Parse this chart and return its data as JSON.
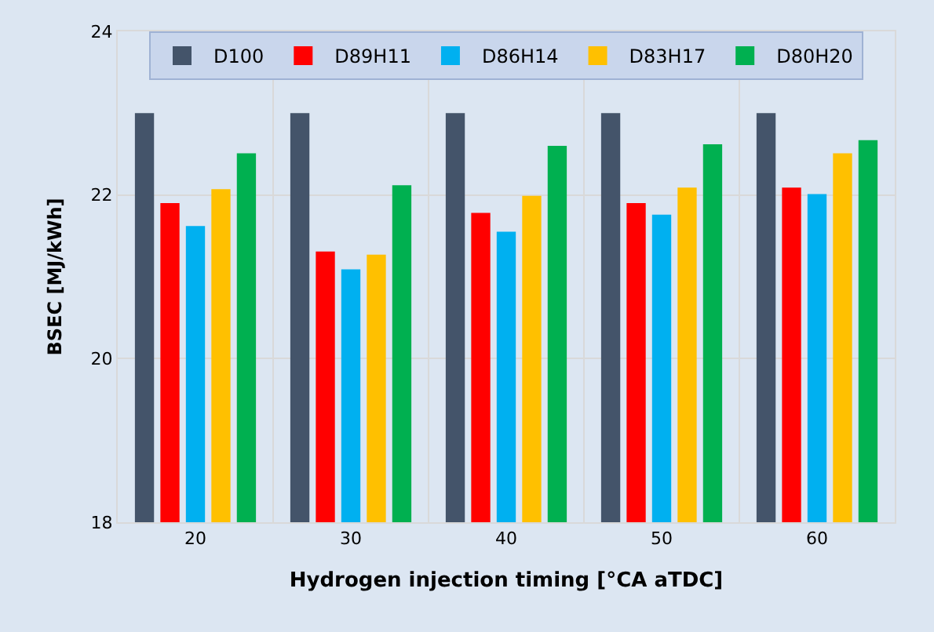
{
  "chart_data": {
    "type": "bar",
    "xlabel": "Hydrogen injection timing [°CA aTDC]",
    "ylabel": "BSEC [MJ/kWh]",
    "categories": [
      "20",
      "30",
      "40",
      "50",
      "60"
    ],
    "series": [
      {
        "name": "D100",
        "color": "#44546a",
        "values": [
          23.0,
          23.0,
          23.0,
          23.0,
          23.0
        ]
      },
      {
        "name": "D89H11",
        "color": "#ff0000",
        "values": [
          21.9,
          21.31,
          21.78,
          21.9,
          22.09
        ]
      },
      {
        "name": "D86H14",
        "color": "#00b0f0",
        "values": [
          21.62,
          21.09,
          21.55,
          21.76,
          22.01
        ]
      },
      {
        "name": "D83H17",
        "color": "#ffc000",
        "values": [
          22.07,
          21.27,
          21.99,
          22.09,
          22.51
        ]
      },
      {
        "name": "D80H20",
        "color": "#00b050",
        "values": [
          22.51,
          22.12,
          22.6,
          22.62,
          22.67
        ]
      }
    ],
    "ylim": [
      18,
      24
    ],
    "yticks": [
      18,
      20,
      22,
      24
    ],
    "grid": true,
    "legend": "top"
  }
}
